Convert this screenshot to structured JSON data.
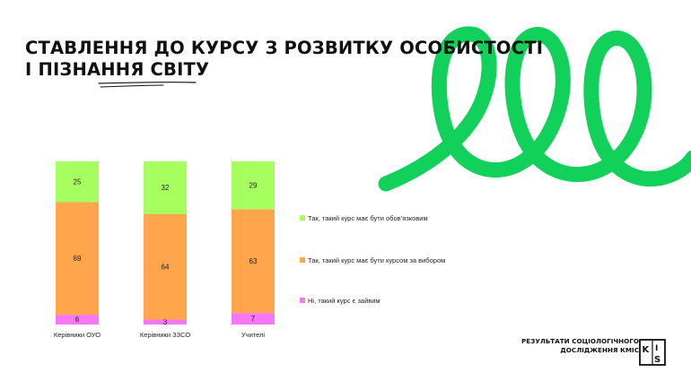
{
  "title": {
    "line1": "СТАВЛЕННЯ ДО КУРСУ З РОЗВИТКУ ОСОБИСТОСТІ",
    "line2": "І ПІЗНАННЯ СВІТУ"
  },
  "colors": {
    "brand_green": "#11d15a",
    "series_required": "#a6ff5e",
    "series_elective": "#ffa54c",
    "series_unneeded": "#f478f4"
  },
  "chart_data": {
    "type": "bar",
    "stacked": true,
    "normalized_percent": true,
    "categories": [
      "Керівники ОУО",
      "Керівники ЗЗСО",
      "Учителі"
    ],
    "series": [
      {
        "name": "Ні, такий курс є зайвим",
        "values": [
          6,
          3,
          7
        ],
        "color": "#f478f4"
      },
      {
        "name": "Так, такий курс має бути курсом за вибором",
        "values": [
          69,
          64,
          63
        ],
        "color": "#ffa54c"
      },
      {
        "name": "Так, такий курс має бути обов’язковим",
        "values": [
          25,
          32,
          29
        ],
        "color": "#a6ff5e"
      }
    ],
    "legend_position": "right",
    "grid": false
  },
  "legend": [
    {
      "label": "Так, такий курс має бути обов’язковим",
      "color": "#a6ff5e"
    },
    {
      "label": "Так, такий курс має бути курсом за вибором",
      "color": "#ffa54c"
    },
    {
      "label": "Ні, такий курс є зайвим",
      "color": "#f478f4"
    }
  ],
  "footer": {
    "line1": "РЕЗУЛЬТАТИ СОЦІОЛОГІЧНОГО",
    "line2": "ДОСЛІДЖЕННЯ КМІС",
    "logo_text": "KIIS",
    "logo_icon": "kiis-logo-icon"
  }
}
